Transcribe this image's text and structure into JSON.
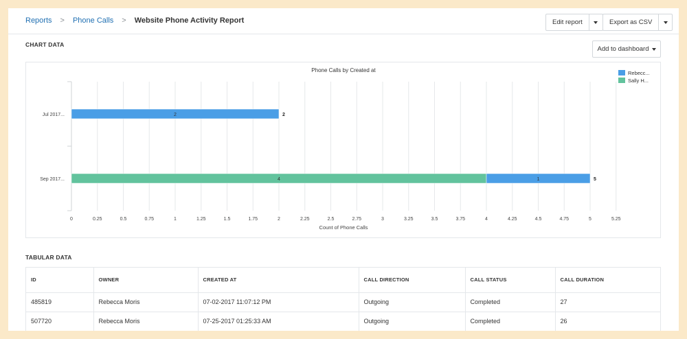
{
  "breadcrumb": {
    "items": [
      "Reports",
      "Phone Calls"
    ],
    "separator": ">",
    "current": "Website Phone Activity Report"
  },
  "toolbar": {
    "edit_label": "Edit report",
    "export_label": "Export as CSV"
  },
  "chart_section": {
    "title": "CHART DATA",
    "add_dashboard_label": "Add to dashboard"
  },
  "chart_data": {
    "type": "bar",
    "orientation": "horizontal",
    "stacked": true,
    "title": "Phone Calls by Created at",
    "xlabel": "Count of Phone Calls",
    "ylabel": "",
    "categories": [
      "Jul 2017...",
      "Sep 2017..."
    ],
    "series": [
      {
        "name": "Rebecc...",
        "color": "#4a9ee6",
        "values": [
          2,
          1
        ]
      },
      {
        "name": "Sally H...",
        "color": "#62c39d",
        "values": [
          0,
          4
        ]
      }
    ],
    "stack_order": [
      [
        0
      ],
      [
        1,
        0
      ]
    ],
    "totals": [
      2,
      5
    ],
    "xlim": [
      0,
      5.25
    ],
    "xticks": [
      "0",
      "0.25",
      "0.5",
      "0.75",
      "1",
      "1.25",
      "1.5",
      "1.75",
      "2",
      "2.25",
      "2.5",
      "2.75",
      "3",
      "3.25",
      "3.5",
      "3.75",
      "4",
      "4.25",
      "4.5",
      "4.75",
      "5",
      "5.25"
    ],
    "grid": true,
    "legend_position": "top-right"
  },
  "table_section": {
    "title": "TABULAR DATA",
    "columns": [
      "ID",
      "OWNER",
      "CREATED AT",
      "CALL DIRECTION",
      "CALL STATUS",
      "CALL DURATION"
    ],
    "rows": [
      [
        "485819",
        "Rebecca Moris",
        "07-02-2017 11:07:12 PM",
        "Outgoing",
        "Completed",
        "27"
      ],
      [
        "507720",
        "Rebecca Moris",
        "07-25-2017 01:25:33 AM",
        "Outgoing",
        "Completed",
        "26"
      ]
    ]
  }
}
